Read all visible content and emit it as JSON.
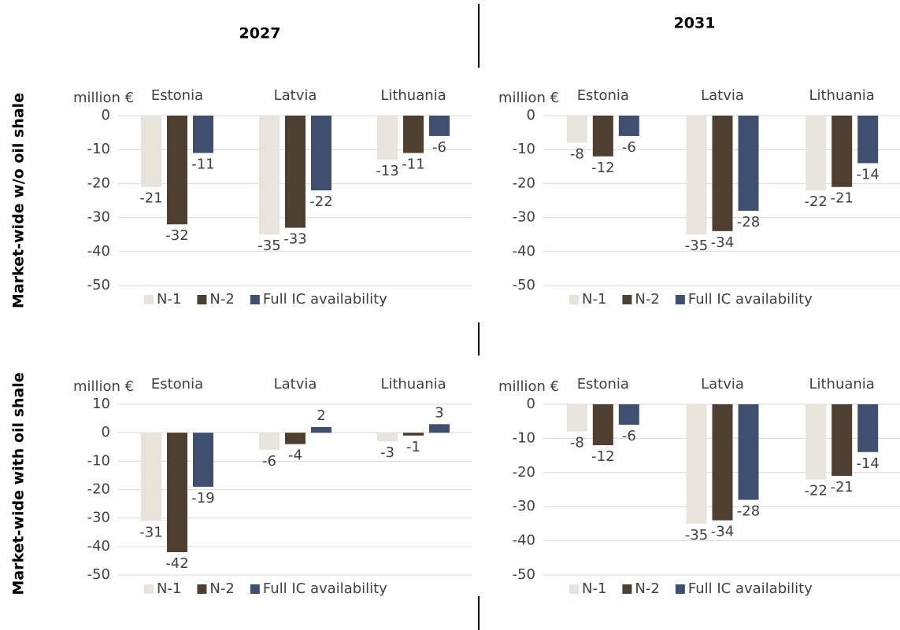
{
  "columns": [
    "2027",
    "2031"
  ],
  "rows": [
    "Market-wide w/o oil shale",
    "Market-wide with oil shale"
  ],
  "chart_data": [
    {
      "type": "bar",
      "ylabel": "million €",
      "categories": [
        "Estonia",
        "Latvia",
        "Lithuania"
      ],
      "series": [
        {
          "name": "N-1",
          "color": "#e8e4dc",
          "values": [
            -21,
            -35,
            -13
          ]
        },
        {
          "name": "N-2",
          "color": "#4f3f30",
          "values": [
            -32,
            -33,
            -11
          ]
        },
        {
          "name": "Full IC availability",
          "color": "#3f4f70",
          "values": [
            -11,
            -22,
            -6
          ]
        }
      ],
      "ylim": [
        -50,
        0
      ],
      "yticks": [
        0,
        -10,
        -20,
        -30,
        -40,
        -50
      ],
      "grid": true,
      "legend": "bottom"
    },
    {
      "type": "bar",
      "ylabel": "million €",
      "categories": [
        "Estonia",
        "Latvia",
        "Lithuania"
      ],
      "series": [
        {
          "name": "N-1",
          "color": "#e8e4dc",
          "values": [
            -8,
            -35,
            -22
          ]
        },
        {
          "name": "N-2",
          "color": "#4f3f30",
          "values": [
            -12,
            -34,
            -21
          ]
        },
        {
          "name": "Full IC availability",
          "color": "#3f4f70",
          "values": [
            -6,
            -28,
            -14
          ]
        }
      ],
      "ylim": [
        -50,
        0
      ],
      "yticks": [
        0,
        -10,
        -20,
        -30,
        -40,
        -50
      ],
      "grid": true,
      "legend": "bottom"
    },
    {
      "type": "bar",
      "ylabel": "million €",
      "categories": [
        "Estonia",
        "Latvia",
        "Lithuania"
      ],
      "series": [
        {
          "name": "N-1",
          "color": "#e8e4dc",
          "values": [
            -31,
            -6,
            -3
          ]
        },
        {
          "name": "N-2",
          "color": "#4f3f30",
          "values": [
            -42,
            -4,
            -1
          ]
        },
        {
          "name": "Full IC availability",
          "color": "#3f4f70",
          "values": [
            -19,
            2,
            3
          ]
        }
      ],
      "ylim": [
        -50,
        10
      ],
      "yticks": [
        10,
        0,
        -10,
        -20,
        -30,
        -40,
        -50
      ],
      "grid": true,
      "legend": "bottom"
    },
    {
      "type": "bar",
      "ylabel": "million €",
      "categories": [
        "Estonia",
        "Latvia",
        "Lithuania"
      ],
      "series": [
        {
          "name": "N-1",
          "color": "#e8e4dc",
          "values": [
            -8,
            -35,
            -22
          ]
        },
        {
          "name": "N-2",
          "color": "#4f3f30",
          "values": [
            -12,
            -34,
            -21
          ]
        },
        {
          "name": "Full IC availability",
          "color": "#3f4f70",
          "values": [
            -6,
            -28,
            -14
          ]
        }
      ],
      "ylim": [
        -50,
        0
      ],
      "yticks": [
        0,
        -10,
        -20,
        -30,
        -40,
        -50
      ],
      "grid": true,
      "legend": "bottom"
    }
  ]
}
